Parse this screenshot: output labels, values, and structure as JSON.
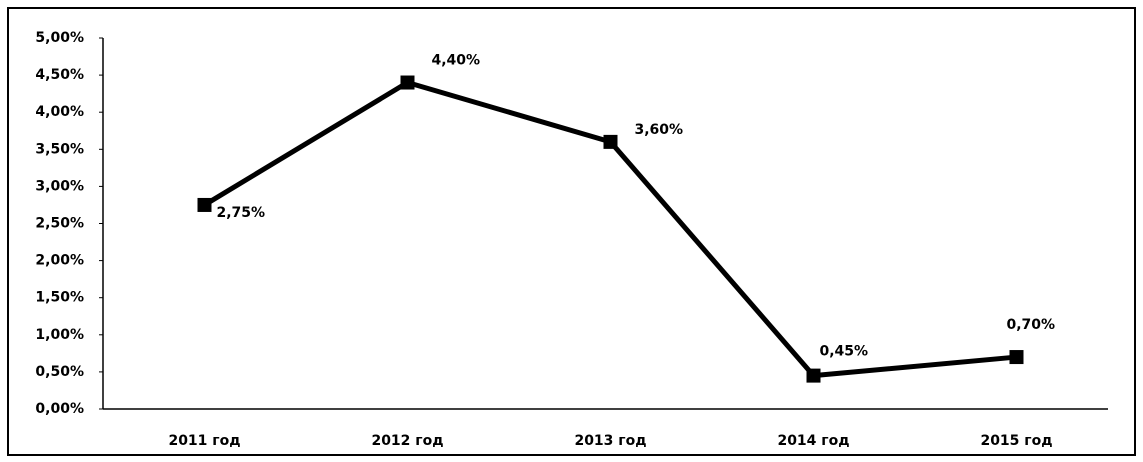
{
  "chart_data": {
    "type": "line",
    "categories": [
      "2011 год",
      "2012 год",
      "2013 год",
      "2014 год",
      "2015 год"
    ],
    "series": [
      {
        "color": "#000000",
        "values": [
          2.75,
          4.4,
          3.6,
          0.45,
          0.7
        ],
        "value_labels": [
          "2,75%",
          "4,40%",
          "3,60%",
          "0,45%",
          "0,70%"
        ]
      }
    ],
    "ylim": [
      0,
      5
    ],
    "yticks": [
      {
        "value": 0,
        "label": "0,00%"
      },
      {
        "value": 0.5,
        "label": "0,50%"
      },
      {
        "value": 1,
        "label": "1,00%"
      },
      {
        "value": 1.5,
        "label": "1,50%"
      },
      {
        "value": 2,
        "label": "2,00%"
      },
      {
        "value": 2.5,
        "label": "2,50%"
      },
      {
        "value": 3,
        "label": "3,00%"
      },
      {
        "value": 3.5,
        "label": "3,50%"
      },
      {
        "value": 4,
        "label": "4,00%"
      },
      {
        "value": 4.5,
        "label": "4,50%"
      },
      {
        "value": 5,
        "label": "5,00%"
      }
    ]
  }
}
